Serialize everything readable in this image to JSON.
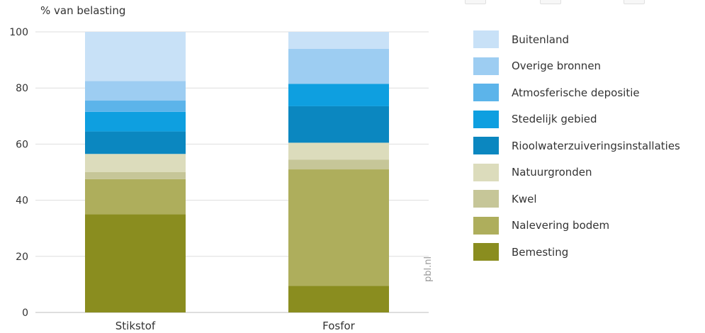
{
  "chart_data": {
    "type": "bar",
    "stacked": true,
    "ylabel": "% van belasting",
    "ylim": [
      0,
      100
    ],
    "yticks": [
      "0",
      "20",
      "40",
      "60",
      "80",
      "100"
    ],
    "categories": [
      "Stikstof",
      "Fosfor"
    ],
    "grid": true,
    "legend_position": "right",
    "series": [
      {
        "name": "Bemesting",
        "color": "#8a8d1f",
        "values": [
          35,
          9.5
        ]
      },
      {
        "name": "Nalevering bodem",
        "color": "#aeae5c",
        "values": [
          12.5,
          41.5
        ]
      },
      {
        "name": "Kwel",
        "color": "#c6c698",
        "values": [
          2.5,
          3.5
        ]
      },
      {
        "name": "Natuurgronden",
        "color": "#dcdcbc",
        "values": [
          6.5,
          6
        ]
      },
      {
        "name": "Rioolwaterzuiveringsinstallaties",
        "color": "#0b87c0",
        "values": [
          8,
          13
        ]
      },
      {
        "name": "Stedelijk gebied",
        "color": "#0e9fe0",
        "values": [
          7,
          8
        ]
      },
      {
        "name": "Atmosferische depositie",
        "color": "#5cb4ea",
        "values": [
          4,
          0
        ]
      },
      {
        "name": "Overige bronnen",
        "color": "#9dcdf2",
        "values": [
          7,
          12.5
        ]
      },
      {
        "name": "Buitenland",
        "color": "#c8e1f7",
        "values": [
          17.5,
          6
        ]
      }
    ]
  },
  "watermark": "pbl.nl"
}
